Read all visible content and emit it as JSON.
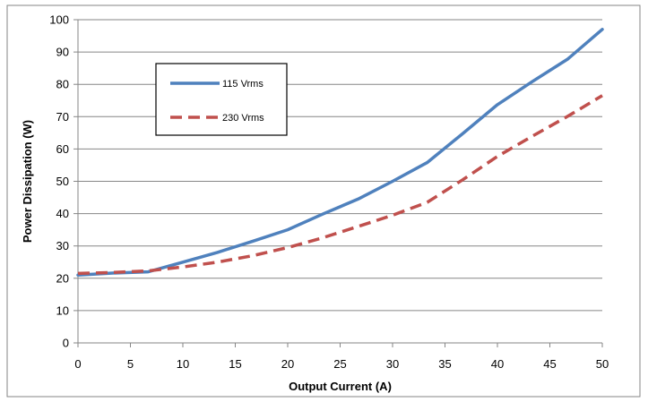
{
  "chart_data": {
    "type": "line",
    "title": "",
    "xlabel": "Output Current (A)",
    "ylabel": "Power Dissipation (W)",
    "xlim": [
      0,
      50
    ],
    "ylim": [
      0,
      100
    ],
    "xticks": [
      0,
      5,
      10,
      15,
      20,
      25,
      30,
      35,
      40,
      45,
      50
    ],
    "yticks": [
      0,
      10,
      20,
      30,
      40,
      50,
      60,
      70,
      80,
      90,
      100
    ],
    "grid": "horizontal",
    "legend_position": "top-left",
    "series": [
      {
        "name": "115 Vrms",
        "color": "#4f81bd",
        "style": "solid",
        "x": [
          0,
          3.3,
          6.7,
          10,
          13.3,
          16.7,
          20,
          23.3,
          26.7,
          30,
          33.3,
          36.7,
          40,
          43.3,
          46.7,
          50
        ],
        "y": [
          21,
          21.6,
          22,
          25,
          28,
          31.5,
          35,
          39.8,
          44.5,
          50,
          55.8,
          64.8,
          73.7,
          80.8,
          87.8,
          97
        ]
      },
      {
        "name": "230 Vrms",
        "color": "#c0504d",
        "style": "dashed",
        "x": [
          0,
          3.3,
          6.7,
          10,
          13.3,
          16.7,
          20,
          23.3,
          26.7,
          30,
          33.3,
          36.7,
          40,
          43.3,
          46.7,
          50
        ],
        "y": [
          21.5,
          21.8,
          22.3,
          23.5,
          25,
          27,
          29.5,
          32.5,
          36,
          39.5,
          43.5,
          50.5,
          57.7,
          63.9,
          70.1,
          76.5
        ]
      }
    ]
  }
}
